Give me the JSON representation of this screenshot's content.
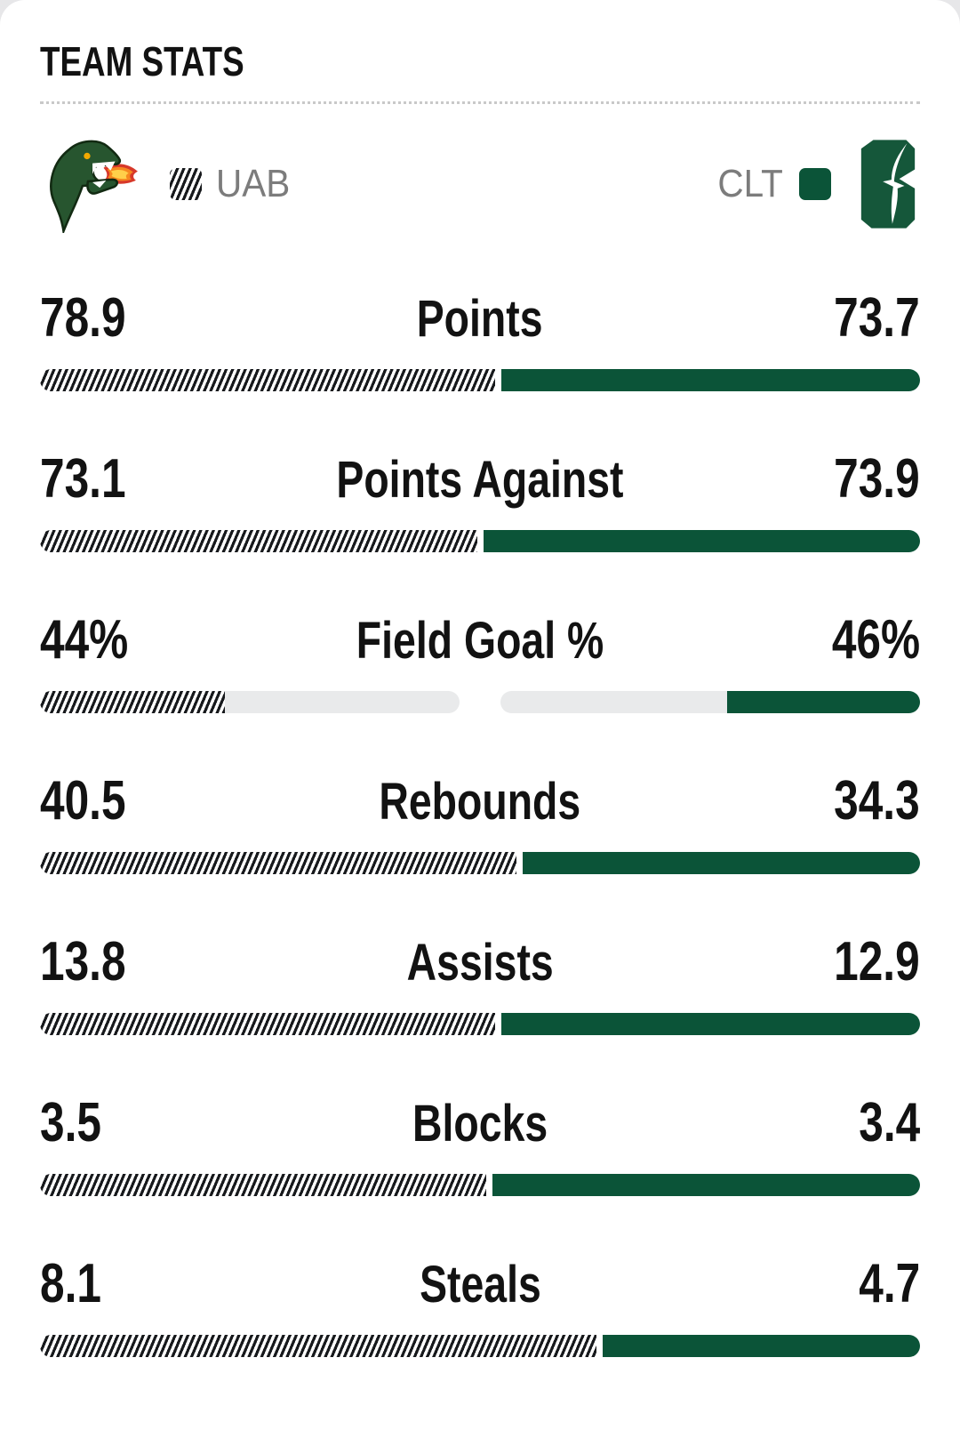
{
  "header": {
    "title": "TEAM STATS"
  },
  "teams": {
    "away": {
      "abbr": "UAB",
      "legend": "hatched-pattern",
      "logo_icon": "uab-dragon-icon"
    },
    "home": {
      "abbr": "CLT",
      "legend": "solid-green",
      "logo_icon": "charlotte-c-icon"
    }
  },
  "colors": {
    "home_green": "#0b5438",
    "hatch_black": "#17191c",
    "track_gray": "#e9eaeb",
    "text_dark": "#121212",
    "abbr_gray": "#7c7c7c"
  },
  "stats": {
    "rows": [
      {
        "label": "Points",
        "away": "78.9",
        "home": "73.7",
        "away_value": 78.9,
        "home_value": 73.7,
        "bar": "share"
      },
      {
        "label": "Points Against",
        "away": "73.1",
        "home": "73.9",
        "away_value": 73.1,
        "home_value": 73.9,
        "bar": "share"
      },
      {
        "label": "Field Goal %",
        "away": "44%",
        "home": "46%",
        "away_value": 44,
        "home_value": 46,
        "bar": "halves"
      },
      {
        "label": "Rebounds",
        "away": "40.5",
        "home": "34.3",
        "away_value": 40.5,
        "home_value": 34.3,
        "bar": "share"
      },
      {
        "label": "Assists",
        "away": "13.8",
        "home": "12.9",
        "away_value": 13.8,
        "home_value": 12.9,
        "bar": "share"
      },
      {
        "label": "Blocks",
        "away": "3.5",
        "home": "3.4",
        "away_value": 3.5,
        "home_value": 3.4,
        "bar": "share"
      },
      {
        "label": "Steals",
        "away": "8.1",
        "home": "4.7",
        "away_value": 8.1,
        "home_value": 4.7,
        "bar": "share"
      }
    ]
  },
  "chart_data": {
    "type": "bar",
    "title": "TEAM STATS",
    "categories": [
      "Points",
      "Points Against",
      "Field Goal %",
      "Rebounds",
      "Assists",
      "Blocks",
      "Steals"
    ],
    "series": [
      {
        "name": "UAB",
        "values": [
          78.9,
          73.1,
          44,
          40.5,
          13.8,
          3.5,
          8.1
        ]
      },
      {
        "name": "CLT",
        "values": [
          73.7,
          73.9,
          46,
          34.3,
          12.9,
          3.4,
          4.7
        ]
      }
    ],
    "legend_position": "top",
    "notes": "Each row is a paired comparison bar; UAB rendered as black hatched pattern, CLT as solid dark green. Field Goal % row uses two half-tracks filled to 44% and 46%."
  }
}
